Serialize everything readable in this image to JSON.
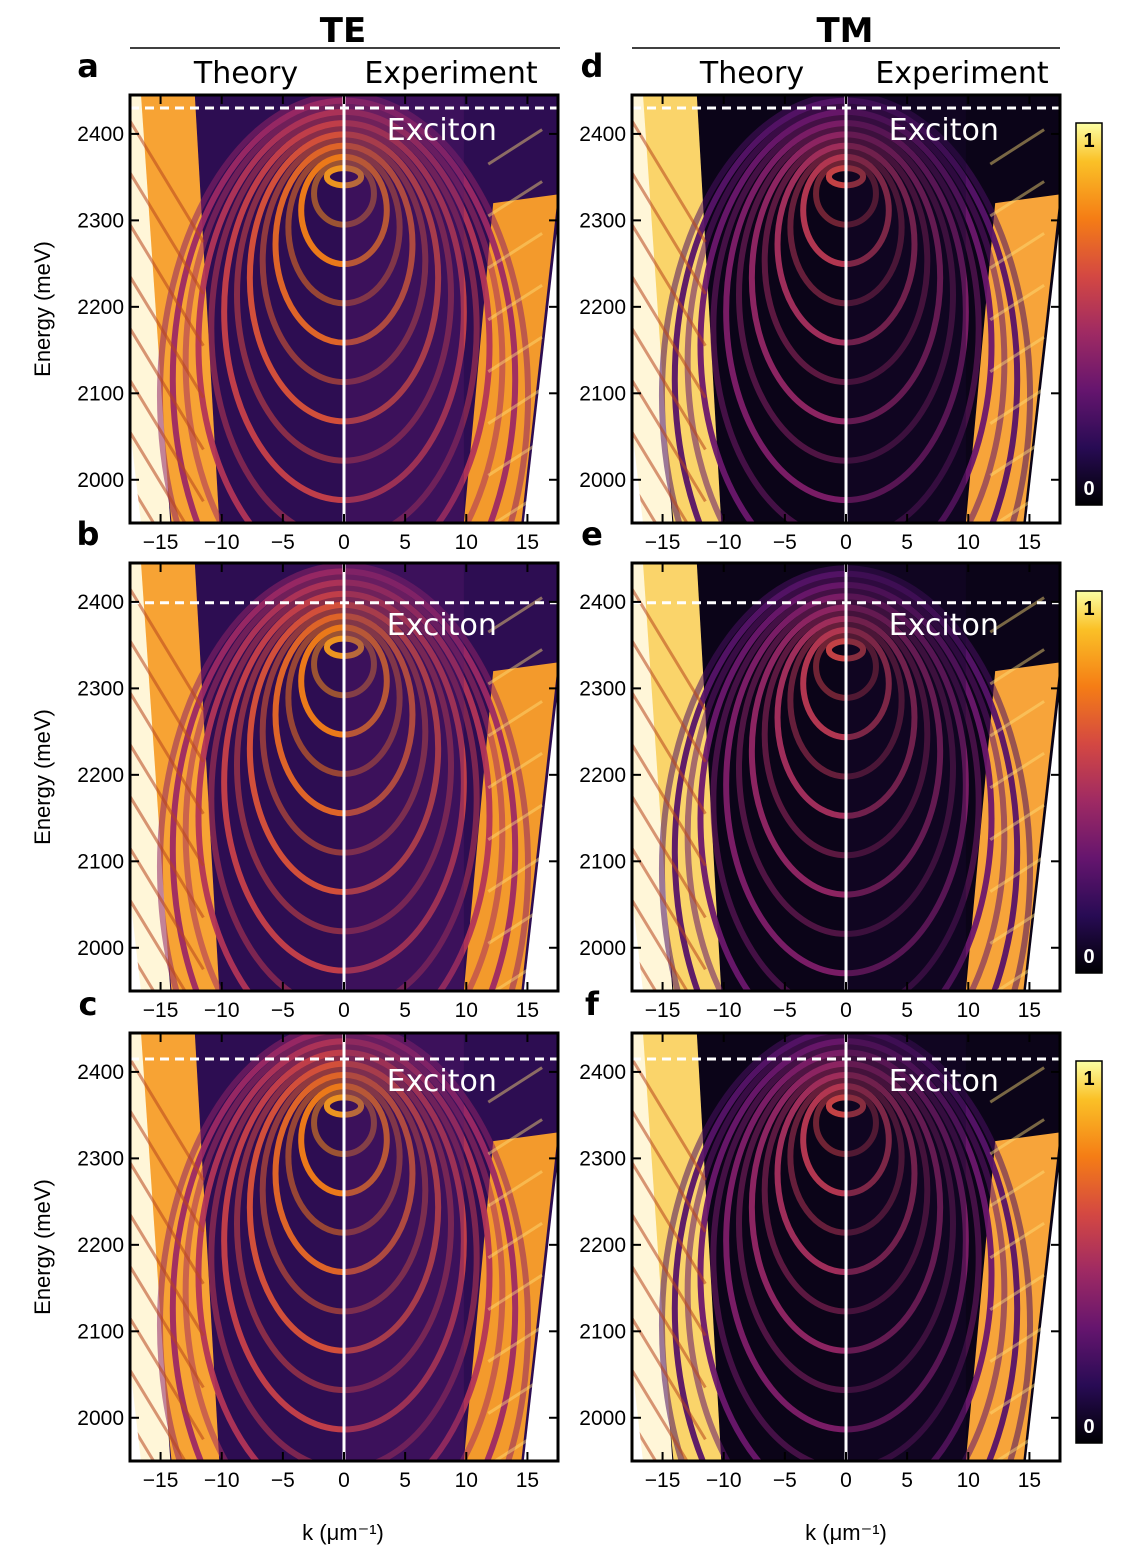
{
  "headers": {
    "te": "TE",
    "tm": "TM",
    "theory": "Theory",
    "experiment": "Experiment"
  },
  "chart_data": {
    "type": "heatmap",
    "xlabel": "k (μm⁻¹)",
    "ylabel": "Energy (meV)",
    "xlim": [
      -17.5,
      17.5
    ],
    "ylim": [
      1950,
      2445
    ],
    "xticks": [
      -15,
      -10,
      -5,
      0,
      5,
      10,
      15
    ],
    "yticks": [
      2000,
      2100,
      2200,
      2300,
      2400
    ],
    "x_tick_labels": [
      "−15",
      "−10",
      "−5",
      "0",
      "5",
      "10",
      "15"
    ],
    "y_tick_labels": [
      "2000",
      "2100",
      "2200",
      "2300",
      "2400"
    ],
    "exciton_label": "Exciton",
    "colorbar": {
      "min_label": "0",
      "max_label": "1",
      "colormap": "inferno"
    },
    "panels": [
      {
        "label": "a",
        "polarization": "TE",
        "exciton_energy": 2430,
        "ring_center_energy": 2358,
        "x_axis_labeled": false
      },
      {
        "label": "b",
        "polarization": "TE",
        "exciton_energy": 2399,
        "ring_center_energy": 2355,
        "x_axis_labeled": false
      },
      {
        "label": "c",
        "polarization": "TE",
        "exciton_energy": 2415,
        "ring_center_energy": 2368,
        "x_axis_labeled": true
      },
      {
        "label": "d",
        "polarization": "TM",
        "exciton_energy": 2430,
        "ring_center_energy": 2358,
        "x_axis_labeled": false
      },
      {
        "label": "e",
        "polarization": "TM",
        "exciton_energy": 2399,
        "ring_center_energy": 2352,
        "x_axis_labeled": false
      },
      {
        "label": "f",
        "polarization": "TM",
        "exciton_energy": 2415,
        "ring_center_energy": 2368,
        "x_axis_labeled": true
      }
    ]
  }
}
